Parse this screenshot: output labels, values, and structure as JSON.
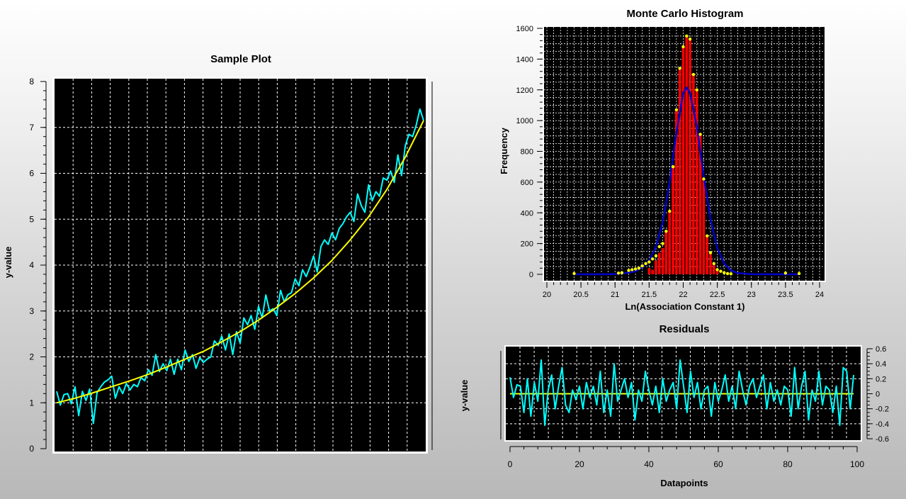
{
  "chart_data": [
    {
      "id": "sample-plot",
      "type": "line",
      "title": "Sample Plot",
      "xlabel": "",
      "ylabel": "y-value",
      "xlim": [
        0,
        100
      ],
      "ylim": [
        0,
        8
      ],
      "yticks": [
        0,
        1,
        2,
        3,
        4,
        5,
        6,
        7,
        8
      ],
      "grid": true,
      "colors": {
        "background": "#000000",
        "data": "#00ffff",
        "fit": "#ffff00",
        "grid": "#ffffff"
      },
      "series": [
        {
          "role": "data",
          "x": [
            0,
            1,
            2,
            3,
            4,
            5,
            6,
            7,
            8,
            9,
            10,
            11,
            12,
            13,
            14,
            15,
            16,
            17,
            18,
            19,
            20,
            21,
            22,
            23,
            24,
            25,
            26,
            27,
            28,
            29,
            30,
            31,
            32,
            33,
            34,
            35,
            36,
            37,
            38,
            39,
            40,
            41,
            42,
            43,
            44,
            45,
            46,
            47,
            48,
            49,
            50,
            51,
            52,
            53,
            54,
            55,
            56,
            57,
            58,
            59,
            60,
            61,
            62,
            63,
            64,
            65,
            66,
            67,
            68,
            69,
            70,
            71,
            72,
            73,
            74,
            75,
            76,
            77,
            78,
            79,
            80,
            81,
            82,
            83,
            84,
            85,
            86,
            87,
            88,
            89,
            90,
            91,
            92,
            93,
            94,
            95,
            96,
            97,
            98,
            99,
            100
          ],
          "y": [
            1.25,
            0.95,
            1.18,
            1.2,
            0.98,
            1.35,
            0.72,
            1.25,
            1.05,
            1.3,
            0.55,
            1.22,
            1.35,
            1.45,
            1.5,
            1.58,
            1.1,
            1.35,
            1.2,
            1.42,
            1.28,
            1.4,
            1.35,
            1.55,
            1.48,
            1.72,
            1.6,
            2.05,
            1.68,
            1.85,
            1.7,
            1.95,
            1.62,
            1.95,
            1.72,
            2.15,
            1.9,
            2.05,
            1.75,
            1.98,
            1.88,
            1.95,
            2.0,
            2.35,
            2.25,
            2.45,
            2.15,
            2.5,
            2.05,
            2.55,
            2.3,
            2.85,
            2.7,
            2.9,
            2.6,
            3.1,
            2.85,
            3.35,
            3.0,
            3.05,
            2.9,
            3.45,
            3.2,
            3.35,
            3.4,
            3.7,
            3.55,
            3.9,
            3.75,
            3.95,
            4.2,
            3.85,
            4.4,
            4.55,
            4.45,
            4.7,
            4.55,
            4.8,
            4.9,
            5.05,
            5.15,
            4.95,
            5.55,
            5.3,
            5.15,
            5.75,
            5.4,
            5.6,
            5.5,
            5.9,
            5.85,
            6.05,
            5.8,
            6.4,
            5.95,
            6.6,
            6.85,
            6.8,
            7.05,
            7.4,
            7.15
          ],
          "line_width": 2
        },
        {
          "role": "fit",
          "x": [
            0,
            5,
            10,
            15,
            20,
            25,
            30,
            35,
            40,
            45,
            50,
            55,
            60,
            65,
            70,
            75,
            80,
            85,
            90,
            95,
            100
          ],
          "y": [
            1.0,
            1.1,
            1.22,
            1.35,
            1.48,
            1.62,
            1.78,
            1.95,
            2.12,
            2.33,
            2.55,
            2.8,
            3.08,
            3.38,
            3.72,
            4.1,
            4.55,
            5.05,
            5.65,
            6.35,
            7.15
          ],
          "line_width": 2
        }
      ]
    },
    {
      "id": "monte-carlo-histogram",
      "type": "bar",
      "title": "Monte Carlo Histogram",
      "xlabel": "Ln(Association Constant 1)",
      "ylabel": "Frequency",
      "xlim": [
        20,
        24
      ],
      "ylim": [
        0,
        1600
      ],
      "xticks": [
        20,
        20.5,
        21,
        21.5,
        22,
        22.5,
        23,
        23.5,
        24
      ],
      "yticks": [
        0,
        200,
        400,
        600,
        800,
        1000,
        1200,
        1400,
        1600
      ],
      "grid": true,
      "colors": {
        "background": "#000000",
        "bars": "#ff0000",
        "points": "#ffff00",
        "curve": "#0000cc",
        "grid": "#ffffff"
      },
      "bar_width": 0.05,
      "bins": {
        "x": [
          21.5,
          21.55,
          21.6,
          21.65,
          21.7,
          21.75,
          21.8,
          21.85,
          21.9,
          21.95,
          22.0,
          22.05,
          22.1,
          22.15,
          22.2,
          22.25,
          22.3,
          22.35,
          22.4,
          22.45,
          22.5
        ],
        "y": [
          40,
          30,
          90,
          140,
          170,
          280,
          410,
          700,
          1070,
          1340,
          1480,
          1550,
          1530,
          1300,
          1200,
          910,
          620,
          250,
          130,
          70,
          30
        ]
      },
      "points": {
        "x": [
          20.4,
          21.05,
          21.1,
          21.2,
          21.25,
          21.3,
          21.35,
          21.4,
          21.45,
          21.5,
          21.55,
          21.6,
          21.65,
          21.7,
          21.75,
          21.8,
          21.85,
          21.9,
          21.95,
          22.0,
          22.05,
          22.1,
          22.15,
          22.2,
          22.25,
          22.3,
          22.35,
          22.4,
          22.45,
          22.5,
          22.55,
          22.6,
          22.65,
          22.7,
          23.5,
          23.7
        ],
        "y": [
          5,
          8,
          10,
          25,
          30,
          35,
          40,
          55,
          70,
          80,
          100,
          120,
          180,
          200,
          280,
          410,
          700,
          1070,
          1340,
          1480,
          1550,
          1530,
          1300,
          1200,
          910,
          620,
          250,
          140,
          70,
          30,
          20,
          10,
          5,
          3,
          8,
          5
        ]
      },
      "curve": {
        "x": [
          20.4,
          20.8,
          21.0,
          21.2,
          21.3,
          21.4,
          21.5,
          21.6,
          21.7,
          21.8,
          21.9,
          22.0,
          22.05,
          22.1,
          22.2,
          22.3,
          22.4,
          22.5,
          22.6,
          22.7,
          22.8,
          23.0,
          23.4,
          23.7
        ],
        "y": [
          0,
          0,
          2,
          10,
          20,
          45,
          90,
          180,
          340,
          600,
          920,
          1180,
          1215,
          1180,
          960,
          640,
          360,
          170,
          70,
          25,
          8,
          1,
          0,
          0
        ]
      }
    },
    {
      "id": "residuals",
      "type": "line",
      "title": "Residuals",
      "xlabel": "Datapoints",
      "ylabel": "y-value",
      "xlim": [
        0,
        100
      ],
      "ylim": [
        -0.6,
        0.6
      ],
      "xticks": [
        0,
        20,
        40,
        60,
        80,
        100
      ],
      "yticks": [
        0.6,
        0.4,
        0.2,
        0,
        -0.2,
        -0.4,
        -0.6
      ],
      "grid": true,
      "colors": {
        "background": "#000000",
        "data": "#00ffff",
        "zero": "#ffff00",
        "grid": "#ffffff"
      },
      "series": [
        {
          "role": "residuals",
          "x": [
            0,
            1,
            2,
            3,
            4,
            5,
            6,
            7,
            8,
            9,
            10,
            11,
            12,
            13,
            14,
            15,
            16,
            17,
            18,
            19,
            20,
            21,
            22,
            23,
            24,
            25,
            26,
            27,
            28,
            29,
            30,
            31,
            32,
            33,
            34,
            35,
            36,
            37,
            38,
            39,
            40,
            41,
            42,
            43,
            44,
            45,
            46,
            47,
            48,
            49,
            50,
            51,
            52,
            53,
            54,
            55,
            56,
            57,
            58,
            59,
            60,
            61,
            62,
            63,
            64,
            65,
            66,
            67,
            68,
            69,
            70,
            71,
            72,
            73,
            74,
            75,
            76,
            77,
            78,
            79,
            80,
            81,
            82,
            83,
            84,
            85,
            86,
            87,
            88,
            89,
            90,
            91,
            92,
            93,
            94,
            95,
            96,
            97,
            98,
            99
          ],
          "y": [
            0.22,
            -0.05,
            0.12,
            0.1,
            -0.25,
            0.2,
            -0.3,
            0.15,
            -0.1,
            0.45,
            -0.42,
            0.05,
            0.25,
            -0.2,
            0.1,
            0.35,
            -0.15,
            -0.25,
            0.05,
            -0.08,
            0.1,
            -0.2,
            0.15,
            -0.05,
            0.1,
            -0.15,
            0.3,
            -0.25,
            0.05,
            -0.3,
            0.4,
            -0.1,
            0.05,
            0.2,
            -0.05,
            0.15,
            -0.35,
            0.05,
            -0.1,
            0.3,
            0.05,
            -0.15,
            0.1,
            -0.25,
            0.2,
            -0.1,
            0.05,
            0.15,
            -0.2,
            0.45,
            0.1,
            -0.25,
            0.3,
            -0.05,
            0.15,
            -0.2,
            0.05,
            0.1,
            -0.3,
            0.15,
            -0.1,
            0.05,
            0.25,
            -0.1,
            0.1,
            -0.2,
            0.3,
            0.05,
            -0.15,
            0.1,
            0.2,
            -0.05,
            0.1,
            0.25,
            -0.2,
            0.15,
            -0.1,
            0.05,
            -0.15,
            0.1,
            0.05,
            -0.3,
            0.35,
            -0.2,
            0.1,
            0.3,
            -0.35,
            0.05,
            -0.1,
            0.3,
            -0.15,
            0.1,
            0.05,
            -0.25,
            0.1,
            -0.42,
            0.35,
            0.3,
            -0.2,
            0.25
          ],
          "line_width": 2
        },
        {
          "role": "zero-line",
          "x": [
            0,
            99
          ],
          "y": [
            0,
            0
          ],
          "line_width": 2
        }
      ]
    }
  ]
}
